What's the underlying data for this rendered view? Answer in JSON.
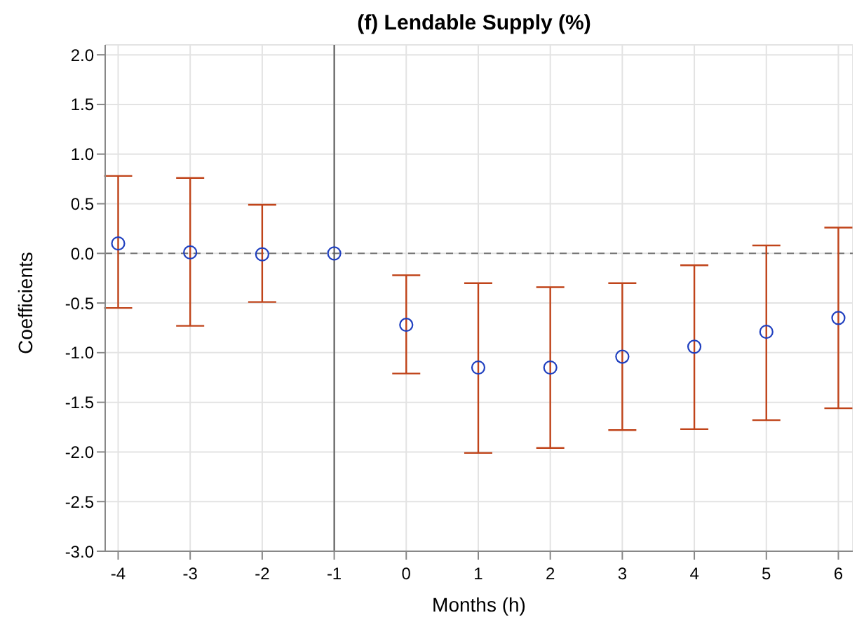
{
  "chart_data": {
    "type": "scatter",
    "title": "(f) Lendable Supply (%)",
    "xlabel": "Months (h)",
    "ylabel": "Coefficients",
    "x": [
      -4,
      -3,
      -2,
      -1,
      0,
      1,
      2,
      3,
      4,
      5,
      6
    ],
    "series": [
      {
        "color": "#1f3fbf",
        "values": [
          0.1,
          0.01,
          -0.01,
          0,
          -0.72,
          -1.15,
          -1.15,
          -1.04,
          -0.94,
          -0.79,
          -0.65
        ],
        "errors": [
          [
            -0.55,
            0.78
          ],
          [
            -0.73,
            0.76
          ],
          [
            -0.49,
            0.49
          ],
          null,
          [
            -1.21,
            -0.22
          ],
          [
            -2.01,
            -0.3
          ],
          [
            -1.96,
            -0.34
          ],
          [
            -1.78,
            -0.3
          ],
          [
            -1.77,
            -0.12
          ],
          [
            -1.68,
            0.08
          ],
          [
            -1.56,
            0.26
          ]
        ]
      }
    ],
    "xlim": [
      -4.18,
      6.2
    ],
    "xticks": [
      -4,
      -3,
      -2,
      -1,
      0,
      1,
      2,
      3,
      4,
      5,
      6
    ],
    "ylim": [
      -3,
      2.1
    ],
    "yticks": [
      {
        "value": -3,
        "label": "-3.0"
      },
      {
        "value": -2.5,
        "label": "-2.5"
      },
      {
        "value": -2,
        "label": "-2.0"
      },
      {
        "value": -1.5,
        "label": "-1.5"
      },
      {
        "value": -1,
        "label": "-1.0"
      },
      {
        "value": -0.5,
        "label": "-0.5"
      },
      {
        "value": 0,
        "label": "0.0"
      },
      {
        "value": 0.5,
        "label": "0.5"
      },
      {
        "value": 1,
        "label": "1.0"
      },
      {
        "value": 1.5,
        "label": "1.5"
      },
      {
        "value": 2,
        "label": "2.0"
      }
    ],
    "ref_lines": [
      {
        "axis": "y",
        "value": 0,
        "color": "#777777",
        "line_style": "dashed"
      },
      {
        "axis": "x",
        "value": -1,
        "color": "#555555",
        "line_style": "solid"
      }
    ],
    "grid": true,
    "marker": "circle"
  }
}
